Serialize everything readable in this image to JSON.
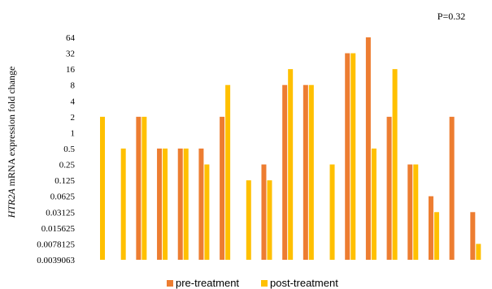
{
  "chart_data": {
    "type": "bar",
    "scale": "log2",
    "annotation": "P=0.32",
    "ylabel_italic": "HTR2A",
    "ylabel_rest": " mRNA expression fold change",
    "y_ticks": [
      "64",
      "32",
      "16",
      "8",
      "4",
      "2",
      "1",
      "0.5",
      "0.25",
      "0.125",
      "0.0625",
      "0.03125",
      "0.015625",
      "0.0078125",
      "0.0039063"
    ],
    "ylim": [
      0.0039063,
      64
    ],
    "grid": false,
    "legend_position": "bottom",
    "series": [
      {
        "name": "pre-treatment",
        "color": "#ED7D31",
        "values": [
          null,
          null,
          2,
          0.5,
          0.5,
          0.5,
          2,
          null,
          0.25,
          8,
          8,
          null,
          32,
          64,
          2,
          0.25,
          0.0625,
          2,
          0.03125
        ]
      },
      {
        "name": "post-treatment",
        "color": "#FFC000",
        "values": [
          2,
          0.5,
          2,
          0.5,
          0.5,
          0.25,
          8,
          0.125,
          0.125,
          16,
          8,
          0.25,
          32,
          0.5,
          16,
          0.25,
          0.03125,
          null,
          0.0078125
        ]
      }
    ]
  }
}
